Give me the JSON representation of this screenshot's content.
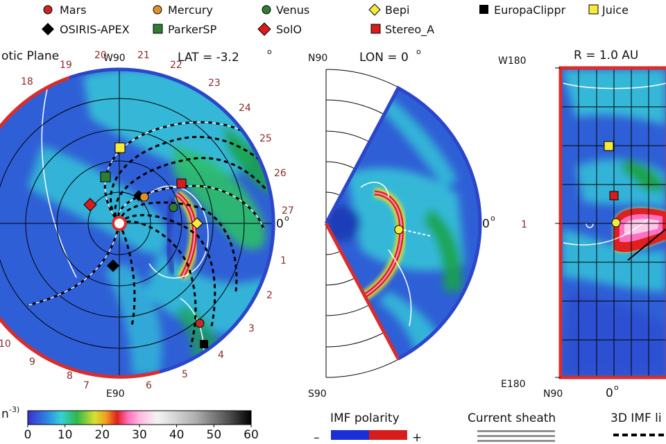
{
  "legend": {
    "items": [
      {
        "label": "Mars",
        "shape": "circle",
        "color": "#c62828"
      },
      {
        "label": "Mercury",
        "shape": "circle",
        "color": "#e0902a"
      },
      {
        "label": "Venus",
        "shape": "circle",
        "color": "#2e7d32"
      },
      {
        "label": "Bepi",
        "shape": "diamond",
        "color": "#f5ec3a"
      },
      {
        "label": "EuropaClippr",
        "shape": "square",
        "color": "#000000"
      },
      {
        "label": "Juice",
        "shape": "square",
        "color": "#f5ec3a"
      },
      {
        "label": "OSIRIS-APEX",
        "shape": "diamond",
        "color": "#000000"
      },
      {
        "label": "ParkerSP",
        "shape": "square",
        "color": "#2e7d32"
      },
      {
        "label": "SolO",
        "shape": "diamond",
        "color": "#d81b1b"
      },
      {
        "label": "Stereo_A",
        "shape": "square",
        "color": "#d81b1b"
      }
    ]
  },
  "panel_ecliptic": {
    "title": "otic Plane",
    "top_label": "W90",
    "bottom_label": "E90",
    "lat_label": "LAT = -3.2",
    "lat_sup": "o",
    "right_label": "0",
    "right_sup": "o",
    "day_ticks": [
      "18",
      "19",
      "20",
      "21",
      "22",
      "23",
      "24",
      "25",
      "26",
      "27",
      "1",
      "2",
      "3",
      "4",
      "5",
      "6",
      "7",
      "8",
      "9",
      "10"
    ]
  },
  "panel_meridional": {
    "top_left": "N90",
    "bottom_left": "S90",
    "lon_label": "LON = 0",
    "lon_sup": "o",
    "right_label": "0",
    "right_sup": "o"
  },
  "panel_radial": {
    "title": "R = 1.0 AU",
    "top_left": "W180",
    "bottom_left": "E180",
    "mid_left": "1",
    "bottom_n": "N90",
    "bottom_zero": "0",
    "bottom_sup": "o"
  },
  "colorbar": {
    "unit_prefix": "n",
    "unit_sup": "-3)",
    "ticks": [
      "0",
      "10",
      "20",
      "30",
      "40",
      "50",
      "60"
    ],
    "min": 0,
    "max": 60
  },
  "imf": {
    "title": "IMF polarity",
    "minus": "–",
    "plus": "+"
  },
  "current_sheath": {
    "label": "Current sheath"
  },
  "imf_3d": {
    "label": "3D IMF li"
  },
  "colors": {
    "background_blue": "#2f5fd6",
    "cyan": "#35d0d8",
    "green": "#1aa34a",
    "red": "#d81b1b",
    "rim_blue": "#2b46c9",
    "rim_red": "#d92d2d"
  }
}
